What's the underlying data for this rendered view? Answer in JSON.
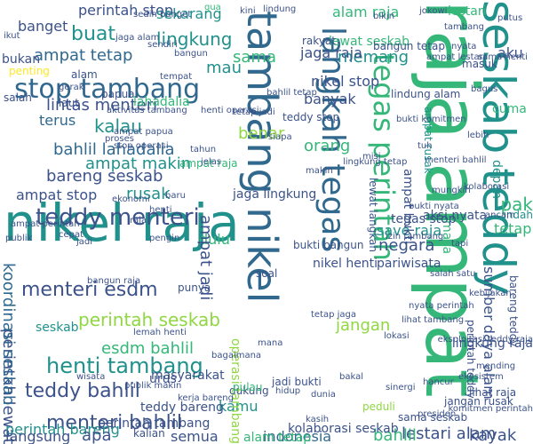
{
  "palette": {
    "purple": "#440154",
    "indigo": "#3b528b",
    "blue": "#31688e",
    "teal": "#21918c",
    "green": "#35b779",
    "lime": "#90d743",
    "yellow": "#fde725"
  },
  "words": [
    {
      "text": "raja ampat",
      "color": "green",
      "vertical": true
    },
    {
      "text": "nikel raja",
      "color": "teal",
      "vertical": false
    },
    {
      "text": "seskab teddy",
      "color": "teal",
      "vertical": true
    },
    {
      "text": "tambang nikel",
      "color": "blue",
      "vertical": true
    },
    {
      "text": "langkah tegas",
      "color": "blue",
      "vertical": true
    },
    {
      "text": "tegas perintah",
      "color": "green",
      "vertical": true
    },
    {
      "text": "stop tambang",
      "color": "blue",
      "vertical": false
    },
    {
      "text": "teddy menteri",
      "color": "indigo",
      "vertical": false
    },
    {
      "text": "henti tambang",
      "color": "teal",
      "vertical": false
    },
    {
      "text": "menteri bahlil",
      "color": "indigo",
      "vertical": false
    },
    {
      "text": "menteri esdm",
      "color": "indigo",
      "vertical": false
    },
    {
      "text": "teddy bahlil",
      "color": "indigo",
      "vertical": false
    },
    {
      "text": "perintah seskab",
      "color": "lime",
      "vertical": false
    },
    {
      "text": "bareng seskab",
      "color": "indigo",
      "vertical": false
    },
    {
      "text": "bahlil lahadalia",
      "color": "blue",
      "vertical": false
    },
    {
      "text": "ampat tetap",
      "color": "blue",
      "vertical": false
    },
    {
      "text": "buat",
      "color": "teal",
      "vertical": false
    },
    {
      "text": "lingkung",
      "color": "teal",
      "vertical": false
    },
    {
      "text": "perintah stop",
      "color": "indigo",
      "vertical": false
    },
    {
      "text": "sekarang",
      "color": "teal",
      "vertical": false
    },
    {
      "text": "alam raja",
      "color": "green",
      "vertical": false
    },
    {
      "text": "banget",
      "color": "indigo",
      "vertical": false
    },
    {
      "text": "memang",
      "color": "teal",
      "vertical": false
    },
    {
      "text": "jaga raja",
      "color": "indigo",
      "vertical": false
    },
    {
      "text": "nikel stop",
      "color": "indigo",
      "vertical": false
    },
    {
      "text": "aku",
      "color": "indigo",
      "vertical": false
    },
    {
      "text": "sama",
      "color": "green",
      "vertical": false
    },
    {
      "text": "mau",
      "color": "teal",
      "vertical": false
    },
    {
      "text": "kalau",
      "color": "teal",
      "vertical": false
    },
    {
      "text": "lintas menteri",
      "color": "indigo",
      "vertical": false
    },
    {
      "text": "terus",
      "color": "blue",
      "vertical": false
    },
    {
      "text": "ampat makin",
      "color": "teal",
      "vertical": false
    },
    {
      "text": "ampat stop",
      "color": "indigo",
      "vertical": false
    },
    {
      "text": "rusak",
      "color": "teal",
      "vertical": false
    },
    {
      "text": "orang",
      "color": "green",
      "vertical": false
    },
    {
      "text": "benar",
      "color": "lime",
      "vertical": false
    },
    {
      "text": "banyak",
      "color": "indigo",
      "vertical": false
    },
    {
      "text": "dulu",
      "color": "green",
      "vertical": false
    },
    {
      "text": "save raja",
      "color": "teal",
      "vertical": false
    },
    {
      "text": "negara",
      "color": "indigo",
      "vertical": false
    },
    {
      "text": "pariwisata",
      "color": "indigo",
      "vertical": false
    },
    {
      "text": "jangan",
      "color": "lime",
      "vertical": false
    },
    {
      "text": "esdm bahlil",
      "color": "green",
      "vertical": false
    },
    {
      "text": "perintah lewat",
      "color": "indigo",
      "vertical": true
    },
    {
      "text": "koordinasi seskab",
      "color": "blue",
      "vertical": true
    },
    {
      "text": "ampat jadi",
      "color": "indigo",
      "vertical": true
    },
    {
      "text": "sumber daya alam",
      "color": "indigo",
      "vertical": true
    },
    {
      "text": "lestari alam",
      "color": "indigo",
      "vertical": false
    },
    {
      "text": "indonesia",
      "color": "blue",
      "vertical": false
    },
    {
      "text": "bahlil",
      "color": "green",
      "vertical": false
    },
    {
      "text": "semua",
      "color": "indigo",
      "vertical": false
    },
    {
      "text": "kamu",
      "color": "teal",
      "vertical": false
    },
    {
      "text": "perintah bareng",
      "color": "teal",
      "vertical": false
    },
    {
      "text": "langsung",
      "color": "indigo",
      "vertical": false
    },
    {
      "text": "apa",
      "color": "indigo",
      "vertical": false
    },
    {
      "text": "perintah tambang",
      "color": "indigo",
      "vertical": false
    },
    {
      "text": "kayak",
      "color": "indigo",
      "vertical": false
    },
    {
      "text": "operasi tambang",
      "color": "lime",
      "vertical": true
    },
    {
      "text": "pak",
      "color": "green",
      "vertical": false
    },
    {
      "text": "masa",
      "color": "green",
      "vertical": true
    },
    {
      "text": "depan",
      "color": "teal",
      "vertical": true
    },
    {
      "text": "nikel henti",
      "color": "indigo",
      "vertical": false
    },
    {
      "text": "masyarakat",
      "color": "indigo",
      "vertical": false
    },
    {
      "text": "teddy bareng",
      "color": "indigo",
      "vertical": false
    },
    {
      "text": "kolaborasi seskab",
      "color": "indigo",
      "vertical": false
    },
    {
      "text": "jaga lingkung",
      "color": "indigo",
      "vertical": false
    },
    {
      "text": "lewat seskab",
      "color": "green",
      "vertical": false
    },
    {
      "text": "bangun tetap",
      "color": "indigo",
      "vertical": false
    },
    {
      "text": "lingkung raja",
      "color": "indigo",
      "vertical": false
    },
    {
      "text": "aksi nyata",
      "color": "indigo",
      "vertical": false
    },
    {
      "text": "tegas stop",
      "color": "indigo",
      "vertical": false
    },
    {
      "text": "bukti bangun",
      "color": "indigo",
      "vertical": false
    },
    {
      "text": "lindung alam",
      "color": "indigo",
      "vertical": false
    },
    {
      "text": "dukung",
      "color": "indigo",
      "vertical": false
    },
    {
      "text": "urus",
      "color": "indigo",
      "vertical": false
    },
    {
      "text": "kalian",
      "color": "indigo",
      "vertical": false
    },
    {
      "text": "pulau",
      "color": "green",
      "vertical": false
    },
    {
      "text": "jadi bukti",
      "color": "indigo",
      "vertical": false
    },
    {
      "text": "peduli",
      "color": "lime",
      "vertical": false
    },
    {
      "text": "lihat raja",
      "color": "indigo",
      "vertical": false
    },
    {
      "text": "rakyat",
      "color": "indigo",
      "vertical": false
    },
    {
      "text": "bukan",
      "color": "indigo",
      "vertical": false
    },
    {
      "text": "alam",
      "color": "indigo",
      "vertical": false
    },
    {
      "text": "papua",
      "color": "indigo",
      "vertical": false
    },
    {
      "text": "laut",
      "color": "indigo",
      "vertical": false
    },
    {
      "text": "kerja bareng",
      "color": "indigo",
      "vertical": false
    },
    {
      "text": "bagaimana",
      "color": "indigo",
      "vertical": false
    },
    {
      "text": "punya",
      "color": "indigo",
      "vertical": false
    },
    {
      "text": "lahadalia",
      "color": "green",
      "vertical": false
    },
    {
      "text": "ampat raja",
      "color": "green",
      "vertical": false
    },
    {
      "text": "ampat bukti",
      "color": "indigo",
      "vertical": true
    },
    {
      "text": "ampat rusak",
      "color": "teal",
      "vertical": true
    },
    {
      "text": "lewat langkah",
      "color": "indigo",
      "vertical": true
    },
    {
      "text": "teddy stop",
      "color": "indigo",
      "vertical": false
    },
    {
      "text": "perintah teddy",
      "color": "indigo",
      "vertical": true
    },
    {
      "text": "bareng teddy",
      "color": "indigo",
      "vertical": true
    },
    {
      "text": "ekosistem",
      "color": "indigo",
      "vertical": false
    },
    {
      "text": "hancur",
      "color": "indigo",
      "vertical": false
    },
    {
      "text": "presiden",
      "color": "indigo",
      "vertical": false
    },
    {
      "text": "sama seskab",
      "color": "indigo",
      "vertical": false
    },
    {
      "text": "jangan rusak",
      "color": "indigo",
      "vertical": false
    },
    {
      "text": "tetap",
      "color": "green",
      "vertical": false
    },
    {
      "text": "indah",
      "color": "teal",
      "vertical": false
    },
    {
      "text": "seskab",
      "color": "teal",
      "vertical": false
    },
    {
      "text": "alam tetap",
      "color": "green",
      "vertical": false
    },
    {
      "text": "lestari",
      "color": "green",
      "vertical": false
    },
    {
      "text": "cuma",
      "color": "green",
      "vertical": false
    },
    {
      "text": "izin tambang",
      "color": "indigo",
      "vertical": false
    },
    {
      "text": "pengin",
      "color": "indigo",
      "vertical": false
    },
    {
      "text": "publik",
      "color": "indigo",
      "vertical": false
    },
    {
      "text": "gua",
      "color": "green",
      "vertical": false
    },
    {
      "text": "lindung",
      "color": "indigo",
      "vertical": false
    },
    {
      "text": "jokowi",
      "color": "indigo",
      "vertical": false
    },
    {
      "text": "putus",
      "color": "indigo",
      "vertical": false
    },
    {
      "text": "lebih",
      "color": "indigo",
      "vertical": false
    },
    {
      "text": "dunia",
      "color": "indigo",
      "vertical": false
    },
    {
      "text": "hidup",
      "color": "indigo",
      "vertical": false
    },
    {
      "text": "masuk",
      "color": "indigo",
      "vertical": false
    },
    {
      "text": "tuh",
      "color": "indigo",
      "vertical": false
    },
    {
      "text": "bakal",
      "color": "indigo",
      "vertical": false
    },
    {
      "text": "salah",
      "color": "indigo",
      "vertical": false
    },
    {
      "text": "baru",
      "color": "indigo",
      "vertical": false
    },
    {
      "text": "penting",
      "color": "yellow",
      "vertical": false
    },
    {
      "text": "mending",
      "color": "indigo",
      "vertical": false
    },
    {
      "text": "kasih",
      "color": "indigo",
      "vertical": false
    },
    {
      "text": "soal",
      "color": "indigo",
      "vertical": false
    },
    {
      "text": "jelas",
      "color": "indigo",
      "vertical": false
    },
    {
      "text": "mana",
      "color": "indigo",
      "vertical": false
    },
    {
      "text": "sinergi",
      "color": "indigo",
      "vertical": false
    },
    {
      "text": "tahun",
      "color": "indigo",
      "vertical": false
    },
    {
      "text": "misi",
      "color": "indigo",
      "vertical": false
    },
    {
      "text": "sendiri",
      "color": "indigo",
      "vertical": false
    },
    {
      "text": "bangun",
      "color": "indigo",
      "vertical": false
    },
    {
      "text": "gerak",
      "color": "indigo",
      "vertical": false
    },
    {
      "text": "ikut",
      "color": "indigo",
      "vertical": false
    },
    {
      "text": "siapa",
      "color": "indigo",
      "vertical": false
    },
    {
      "text": "jadi",
      "color": "indigo",
      "vertical": false
    },
    {
      "text": "tapi",
      "color": "indigo",
      "vertical": false
    },
    {
      "text": "bagus",
      "color": "indigo",
      "vertical": false
    },
    {
      "text": "mungkin",
      "color": "indigo",
      "vertical": false
    },
    {
      "text": "nyata",
      "color": "indigo",
      "vertical": false
    },
    {
      "text": "cepat",
      "color": "indigo",
      "vertical": false
    },
    {
      "text": "bikin",
      "color": "indigo",
      "vertical": false
    },
    {
      "text": "raja",
      "color": "indigo",
      "vertical": false
    },
    {
      "text": "henti",
      "color": "indigo",
      "vertical": false
    },
    {
      "text": "tambang",
      "color": "indigo",
      "vertical": false
    },
    {
      "text": "sedih banget",
      "color": "indigo",
      "vertical": false
    },
    {
      "text": "menteri bahlil",
      "color": "indigo",
      "vertical": false
    },
    {
      "text": "lingkung tetap",
      "color": "indigo",
      "vertical": false
    },
    {
      "text": "bahlil tetap",
      "color": "indigo",
      "vertical": false
    },
    {
      "text": "aktivitas tambang",
      "color": "indigo",
      "vertical": false
    },
    {
      "text": "eksploitasi teddy raja",
      "color": "indigo",
      "vertical": false
    },
    {
      "text": "stop operasi",
      "color": "indigo",
      "vertical": false
    },
    {
      "text": "ampat perintah",
      "color": "indigo",
      "vertical": false
    },
    {
      "text": "tetap jaga",
      "color": "indigo",
      "vertical": false
    },
    {
      "text": "jaga alam",
      "color": "indigo",
      "vertical": false
    },
    {
      "text": "ampat lestari",
      "color": "indigo",
      "vertical": false
    },
    {
      "text": "bukti komitmen",
      "color": "indigo",
      "vertical": false
    },
    {
      "text": "komitmen perintah",
      "color": "indigo",
      "vertical": false
    },
    {
      "text": "publik makin",
      "color": "indigo",
      "vertical": false
    },
    {
      "text": "lemah henti",
      "color": "indigo",
      "vertical": false
    },
    {
      "text": "tetap jadi",
      "color": "indigo",
      "vertical": false
    },
    {
      "text": "ampat papua",
      "color": "indigo",
      "vertical": false
    },
    {
      "text": "henti operasi",
      "color": "indigo",
      "vertical": false
    },
    {
      "text": "nyata perintah",
      "color": "indigo",
      "vertical": false
    },
    {
      "text": "sama henti",
      "color": "indigo",
      "vertical": false
    },
    {
      "text": "bukti nyata",
      "color": "indigo",
      "vertical": false
    },
    {
      "text": "lihat tambang",
      "color": "indigo",
      "vertical": false
    },
    {
      "text": "salah satu",
      "color": "indigo",
      "vertical": false
    },
    {
      "text": "bangun raja",
      "color": "indigo",
      "vertical": false
    },
    {
      "text": "proses",
      "color": "indigo",
      "vertical": false
    },
    {
      "text": "wisata",
      "color": "indigo",
      "vertical": false
    },
    {
      "text": "lokasi",
      "color": "indigo",
      "vertical": false
    },
    {
      "text": "tempat",
      "color": "indigo",
      "vertical": false
    },
    {
      "text": "kini",
      "color": "indigo",
      "vertical": false
    },
    {
      "text": "makin",
      "color": "indigo",
      "vertical": false
    },
    {
      "text": "kolaborasi",
      "color": "indigo",
      "vertical": false
    },
    {
      "text": "kebijakan",
      "color": "indigo",
      "vertical": false
    },
    {
      "text": "ekonomi",
      "color": "indigo",
      "vertical": false
    },
    {
      "text": "ancam",
      "color": "indigo",
      "vertical": false
    }
  ]
}
